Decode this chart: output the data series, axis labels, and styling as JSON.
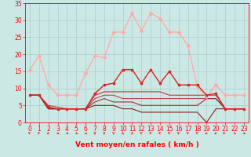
{
  "title": "",
  "xlabel": "Vent moyen/en rafales ( km/h )",
  "background_color": "#cce8e4",
  "grid_color": "#aacccc",
  "xlim": [
    -0.5,
    23.5
  ],
  "ylim": [
    0,
    35
  ],
  "yticks": [
    0,
    5,
    10,
    15,
    20,
    25,
    30,
    35
  ],
  "xticks": [
    0,
    1,
    2,
    3,
    4,
    5,
    6,
    7,
    8,
    9,
    10,
    11,
    12,
    13,
    14,
    15,
    16,
    17,
    18,
    19,
    20,
    21,
    22,
    23
  ],
  "series": [
    {
      "x": [
        0,
        1,
        2,
        3,
        4,
        5,
        6,
        7,
        8,
        9,
        10,
        11,
        12,
        13,
        14,
        15,
        16,
        17,
        18,
        19,
        20,
        21,
        22,
        23
      ],
      "y": [
        15.5,
        19.5,
        11,
        8,
        8,
        8,
        14.5,
        19.5,
        19,
        26.5,
        26.5,
        32,
        27,
        32,
        30.5,
        26.5,
        26.5,
        22.5,
        10.5,
        7.5,
        11,
        8,
        8,
        8
      ],
      "color": "#ffaaaa",
      "lw": 1.0,
      "marker": "D",
      "ms": 2.0
    },
    {
      "x": [
        0,
        1,
        2,
        3,
        4,
        5,
        6,
        7,
        8,
        9,
        10,
        11,
        12,
        13,
        14,
        15,
        16,
        17,
        18,
        19,
        20,
        21,
        22,
        23
      ],
      "y": [
        8,
        8,
        4.5,
        4,
        4,
        4,
        4,
        8.5,
        11,
        11.5,
        15.5,
        15.5,
        11.5,
        15.5,
        11.5,
        15,
        11,
        11,
        11,
        8,
        8.5,
        4,
        4,
        4
      ],
      "color": "#dd2222",
      "lw": 1.0,
      "marker": "s",
      "ms": 2.0
    },
    {
      "x": [
        0,
        1,
        2,
        3,
        4,
        5,
        6,
        7,
        8,
        9,
        10,
        11,
        12,
        13,
        14,
        15,
        16,
        17,
        18,
        19,
        20,
        21,
        22,
        23
      ],
      "y": [
        8,
        8,
        4,
        4,
        4,
        4,
        4,
        8,
        9,
        9,
        9,
        9,
        9,
        9,
        9,
        8,
        8,
        8,
        8,
        8,
        8,
        4,
        4,
        4
      ],
      "color": "#cc3333",
      "lw": 0.8,
      "marker": null,
      "ms": 0
    },
    {
      "x": [
        0,
        1,
        2,
        3,
        4,
        5,
        6,
        7,
        8,
        9,
        10,
        11,
        12,
        13,
        14,
        15,
        16,
        17,
        18,
        19,
        20,
        21,
        22,
        23
      ],
      "y": [
        8,
        8,
        5,
        4.5,
        4,
        4,
        4,
        7,
        8,
        8,
        7,
        7,
        7,
        7,
        7,
        7,
        7,
        7,
        7,
        7,
        7,
        4,
        4,
        4
      ],
      "color": "#bb4444",
      "lw": 0.8,
      "marker": null,
      "ms": 0
    },
    {
      "x": [
        0,
        1,
        2,
        3,
        4,
        5,
        6,
        7,
        8,
        9,
        10,
        11,
        12,
        13,
        14,
        15,
        16,
        17,
        18,
        19,
        20,
        21,
        22,
        23
      ],
      "y": [
        8,
        8,
        4,
        4,
        4,
        4,
        4,
        6,
        7,
        6,
        6,
        6,
        5,
        5,
        5,
        5,
        5,
        5,
        5,
        7,
        7,
        4,
        4,
        4
      ],
      "color": "#993333",
      "lw": 0.8,
      "marker": null,
      "ms": 0
    },
    {
      "x": [
        0,
        1,
        2,
        3,
        4,
        5,
        6,
        7,
        8,
        9,
        10,
        11,
        12,
        13,
        14,
        15,
        16,
        17,
        18,
        19,
        20,
        21,
        22,
        23
      ],
      "y": [
        8,
        8,
        4,
        4,
        4,
        4,
        4,
        5,
        5,
        5,
        4,
        4,
        3,
        3,
        3,
        3,
        3,
        3,
        3,
        0,
        4,
        4,
        4,
        4
      ],
      "color": "#882222",
      "lw": 0.8,
      "marker": null,
      "ms": 0
    }
  ],
  "xlabel_fontsize": 6.5,
  "tick_fontsize": 5.5,
  "arrow_dirs": [
    225,
    225,
    315,
    45,
    45,
    45,
    45,
    0,
    0,
    0,
    180,
    180,
    225,
    225,
    225,
    225,
    225,
    225,
    225,
    315,
    315,
    90,
    45,
    45
  ]
}
